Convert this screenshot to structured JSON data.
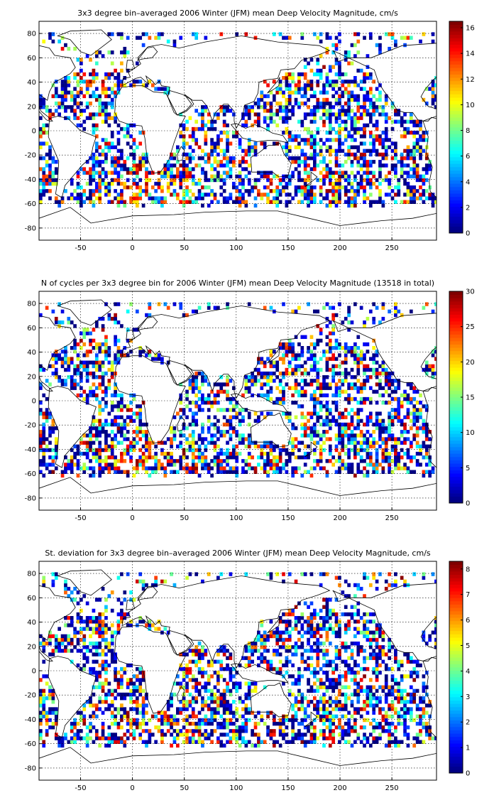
{
  "panels": [
    {
      "title": "3x3 degree bin–averaged 2006 Winter (JFM) mean Deep Velocity Magnitude, cm/s",
      "colorbar": {
        "min": 0,
        "max": 16.5,
        "ticks": [
          0,
          2,
          4,
          6,
          8,
          10,
          12,
          14,
          16
        ]
      },
      "seed": 11,
      "skew": 0.55,
      "hot_seed": 3
    },
    {
      "title": "N of cycles per 3x3 degree bin for 2006 Winter (JFM) mean Deep Velocity Magnitude (13518 in total)",
      "colorbar": {
        "min": 0,
        "max": 30,
        "ticks": [
          0,
          5,
          10,
          15,
          20,
          25,
          30
        ]
      },
      "seed": 29,
      "skew": 0.7,
      "hot_seed": 7
    },
    {
      "title": "St. deviation for 3x3 degree bin–averaged 2006 Winter (JFM) mean Deep Velocity Magnitude, cm/s",
      "colorbar": {
        "min": 0,
        "max": 8.3,
        "ticks": [
          0,
          1,
          2,
          3,
          4,
          5,
          6,
          7,
          8
        ]
      },
      "seed": 47,
      "skew": 0.65,
      "hot_seed": 13
    }
  ],
  "chart_data": [
    {
      "type": "heatmap",
      "title": "3x3 degree bin–averaged 2006 Winter (JFM) mean Deep Velocity Magnitude, cm/s",
      "xlabel": "",
      "ylabel": "",
      "x_ticks": [
        -50,
        0,
        50,
        100,
        150,
        200,
        250
      ],
      "y_ticks": [
        -80,
        -60,
        -40,
        -20,
        0,
        20,
        40,
        60,
        80
      ],
      "xlim": [
        -90,
        293
      ],
      "ylim": [
        -90,
        90
      ],
      "bin_size_deg": 3,
      "colormap": "jet",
      "colorbar_range": [
        0,
        16.5
      ],
      "grid": true
    },
    {
      "type": "heatmap",
      "title": "N of cycles per 3x3 degree bin for 2006 Winter (JFM) mean Deep Velocity Magnitude (13518 in total)",
      "xlabel": "",
      "ylabel": "",
      "x_ticks": [
        -50,
        0,
        50,
        100,
        150,
        200,
        250
      ],
      "y_ticks": [
        -80,
        -60,
        -40,
        -20,
        0,
        20,
        40,
        60,
        80
      ],
      "xlim": [
        -90,
        293
      ],
      "ylim": [
        -90,
        90
      ],
      "bin_size_deg": 3,
      "colormap": "jet",
      "colorbar_range": [
        0,
        30
      ],
      "grid": true
    },
    {
      "type": "heatmap",
      "title": "St. deviation for 3x3 degree bin–averaged 2006 Winter (JFM) mean Deep Velocity Magnitude, cm/s",
      "xlabel": "",
      "ylabel": "",
      "x_ticks": [
        -50,
        0,
        50,
        100,
        150,
        200,
        250
      ],
      "y_ticks": [
        -80,
        -60,
        -40,
        -20,
        0,
        20,
        40,
        60,
        80
      ],
      "xlim": [
        -90,
        293
      ],
      "ylim": [
        -90,
        90
      ],
      "bin_size_deg": 3,
      "colormap": "jet",
      "colorbar_range": [
        0,
        8.3
      ],
      "grid": true
    }
  ]
}
